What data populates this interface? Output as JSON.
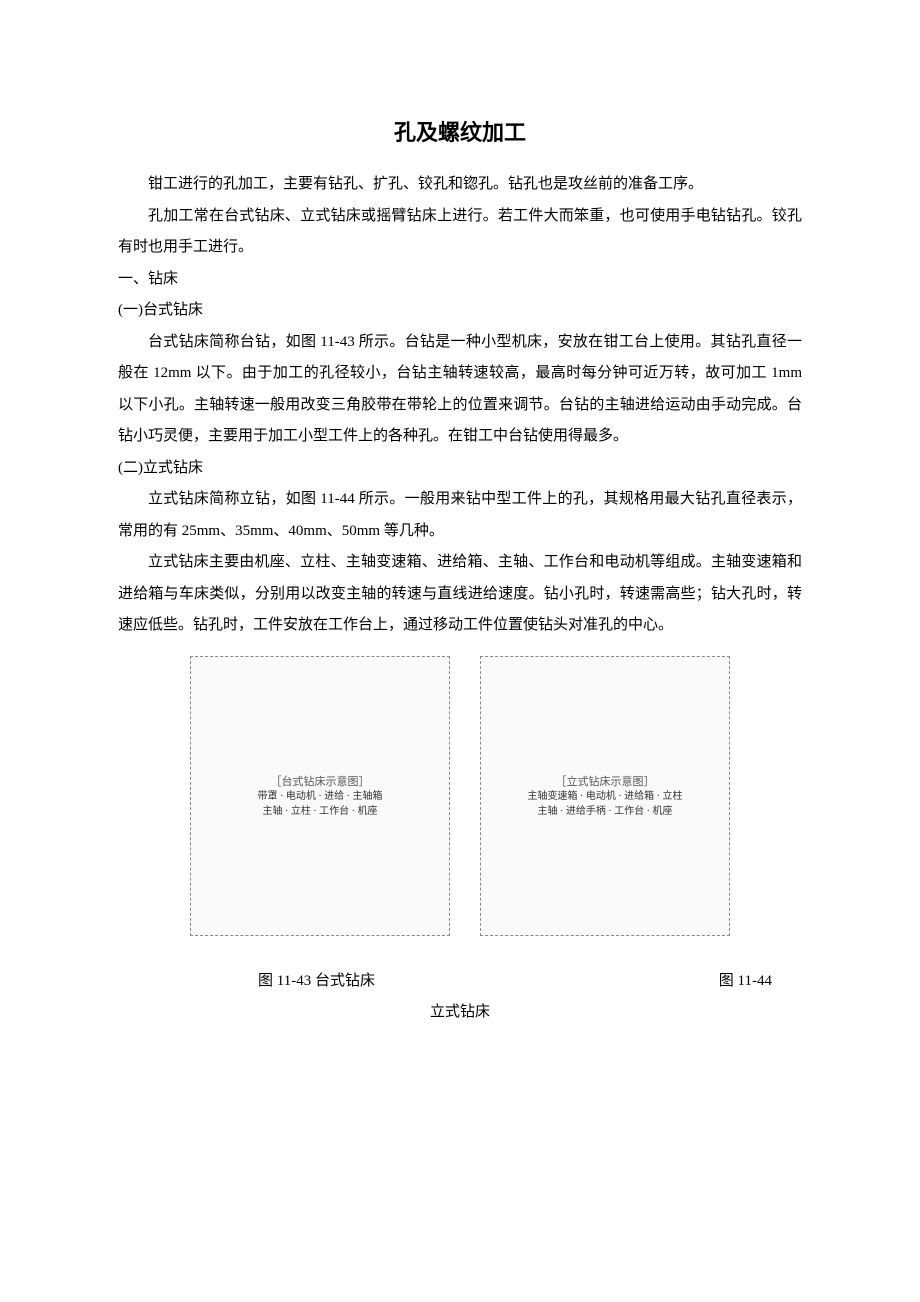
{
  "title": "孔及螺纹加工",
  "p1": "钳工进行的孔加工，主要有钻孔、扩孔、铰孔和锪孔。钻孔也是攻丝前的准备工序。",
  "p2": "孔加工常在台式钻床、立式钻床或摇臂钻床上进行。若工件大而笨重，也可使用手电钻钻孔。铰孔有时也用手工进行。",
  "h1": "一、钻床",
  "h1a": "(一)台式钻床",
  "p3": "台式钻床简称台钻，如图 11-43 所示。台钻是一种小型机床，安放在钳工台上使用。其钻孔直径一般在 12mm 以下。由于加工的孔径较小，台钻主轴转速较高，最高时每分钟可近万转，故可加工 1mm 以下小孔。主轴转速一般用改变三角胶带在带轮上的位置来调节。台钻的主轴进给运动由手动完成。台钻小巧灵便，主要用于加工小型工件上的各种孔。在钳工中台钻使用得最多。",
  "h1b": "(二)立式钻床",
  "p4": "立式钻床简称立钻，如图 11-44 所示。一般用来钻中型工件上的孔，其规格用最大钻孔直径表示，常用的有 25mm、35mm、40mm、50mm 等几种。",
  "p5": "立式钻床主要由机座、立柱、主轴变速箱、进给箱、主轴、工作台和电动机等组成。主轴变速箱和进给箱与车床类似，分别用以改变主轴的转速与直线进给速度。钻小孔时，转速需高些；钻大孔时，转速应低些。钻孔时，工件安放在工作台上，通过移动工件位置使钻头对准孔的中心。",
  "fig_a": {
    "caption": "图 11-43 台式钻床",
    "labels": [
      "带罩",
      "电动机",
      "进给",
      "主轴箱",
      "主轴",
      "立柱",
      "工作台",
      "机座"
    ]
  },
  "fig_b": {
    "caption_a": "图 11-44",
    "caption_b": "立式钻床",
    "labels": [
      "主轴变速箱",
      "电动机",
      "进给箱",
      "立柱",
      "主轴",
      "进给手柄",
      "工作台",
      "机座"
    ]
  },
  "placeholder_a": "［台式钻床示意图］",
  "placeholder_b": "［立式钻床示意图］"
}
